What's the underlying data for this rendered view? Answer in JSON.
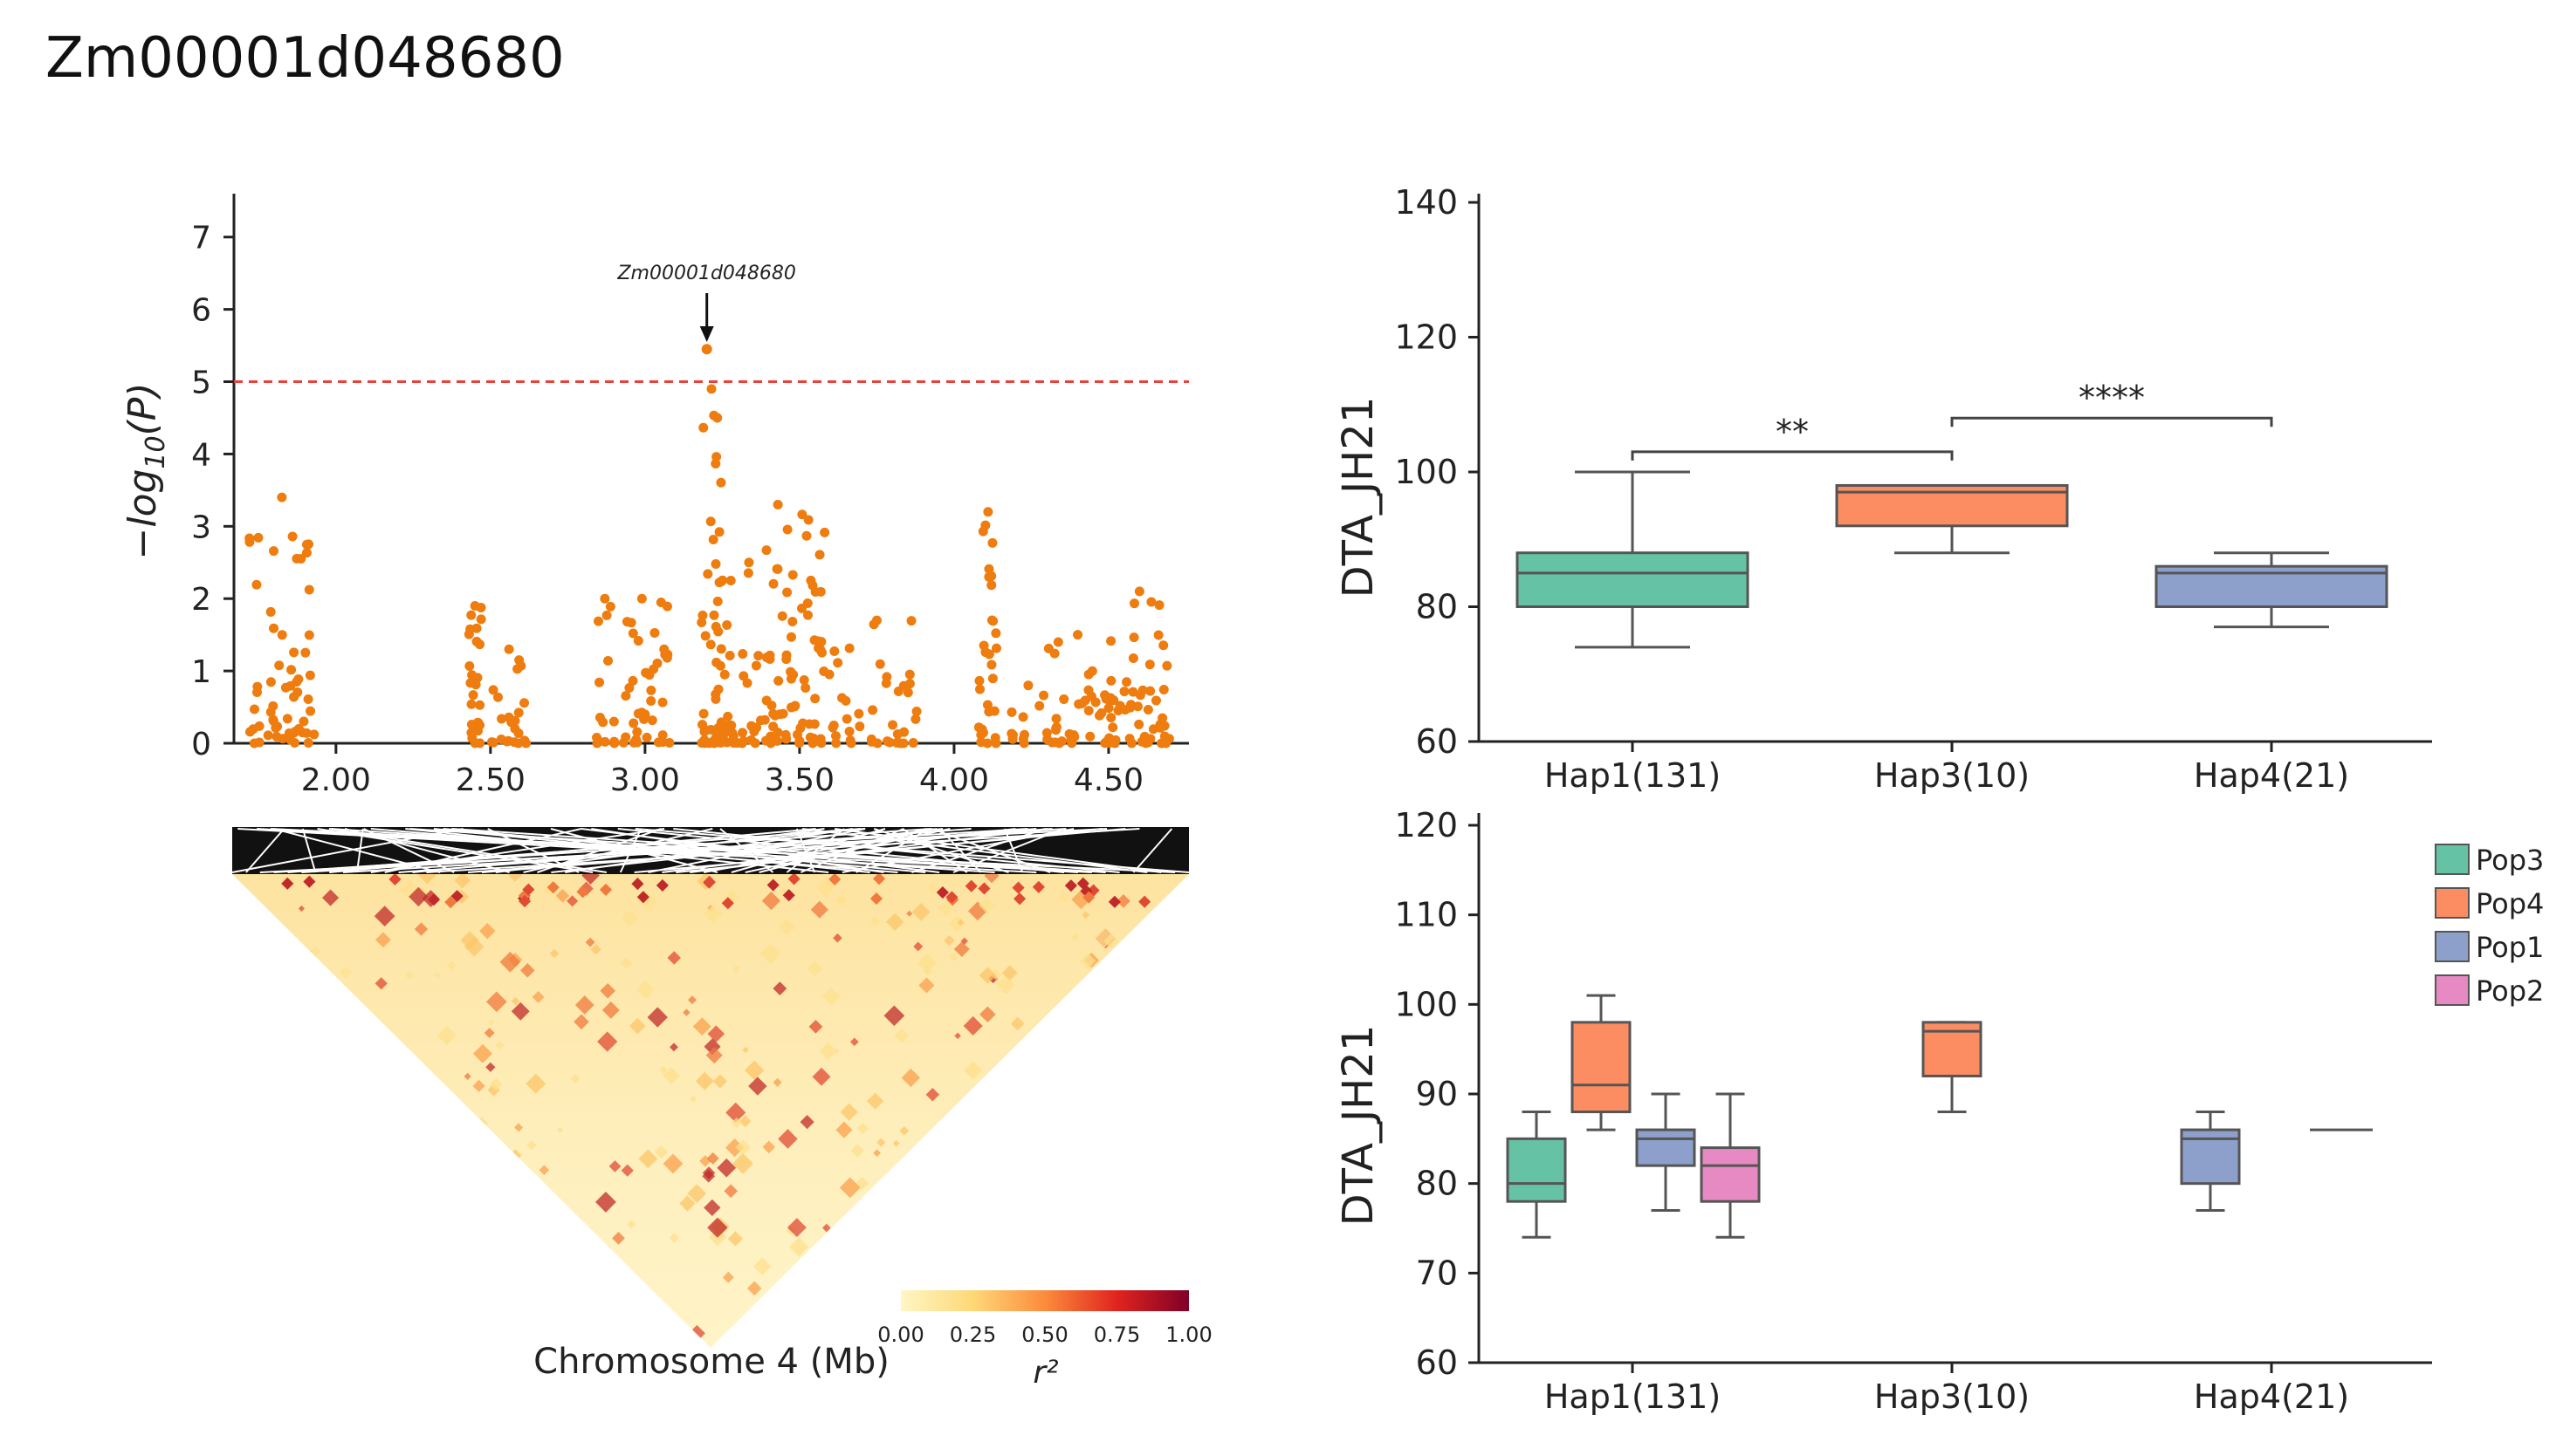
{
  "figure": {
    "title": "Zm00001d048680"
  },
  "chart_data": [
    {
      "id": "manhattan",
      "type": "scatter",
      "title": "",
      "ylabel": "−log10(P)",
      "xlabel": "Chromosome 4 (Mb)",
      "xlim": [
        1.67,
        4.76
      ],
      "ylim": [
        0,
        7.6
      ],
      "xticks": [
        "2.00",
        "2.50",
        "3.00",
        "3.50",
        "4.00",
        "4.50"
      ],
      "xtick_values": [
        2.0,
        2.5,
        3.0,
        3.5,
        4.0,
        4.5
      ],
      "yticks": [
        0,
        1,
        2,
        3,
        4,
        5,
        6,
        7
      ],
      "threshold": 5,
      "threshold_color": "#e8413a",
      "point_color": "#ee7c0e",
      "annotation": {
        "label": "Zm00001d048680",
        "x": 3.2,
        "y": 5.45
      },
      "clusters": [
        {
          "x_min": 1.72,
          "x_max": 1.93,
          "y_max": 3.4,
          "n": 60
        },
        {
          "x_min": 2.43,
          "x_max": 2.47,
          "y_max": 1.9,
          "n": 25
        },
        {
          "x_min": 2.5,
          "x_max": 2.62,
          "y_max": 1.3,
          "n": 22
        },
        {
          "x_min": 2.84,
          "x_max": 2.9,
          "y_max": 2.0,
          "n": 12
        },
        {
          "x_min": 2.9,
          "x_max": 3.08,
          "y_max": 2.0,
          "n": 40
        },
        {
          "x_min": 3.18,
          "x_max": 3.25,
          "y_max": 4.9,
          "n": 45
        },
        {
          "x_min": 3.24,
          "x_max": 3.62,
          "y_max": 3.3,
          "n": 110
        },
        {
          "x_min": 3.62,
          "x_max": 3.88,
          "y_max": 1.7,
          "n": 35
        },
        {
          "x_min": 4.08,
          "x_max": 4.14,
          "y_max": 3.2,
          "n": 30
        },
        {
          "x_min": 4.18,
          "x_max": 4.3,
          "y_max": 0.8,
          "n": 10
        },
        {
          "x_min": 4.3,
          "x_max": 4.5,
          "y_max": 1.5,
          "n": 35
        },
        {
          "x_min": 4.5,
          "x_max": 4.7,
          "y_max": 2.1,
          "n": 55
        }
      ]
    },
    {
      "id": "ld-heatmap",
      "type": "heatmap",
      "colorbar_label": "r²",
      "colorbar_ticks": [
        "0.00",
        "0.25",
        "0.50",
        "0.75",
        "1.00"
      ],
      "colorbar_colors": [
        "#fff6c4",
        "#fed877",
        "#fc8b3c",
        "#e0241f",
        "#800026"
      ]
    },
    {
      "id": "haplotype-box",
      "type": "box",
      "ylabel": "DTA_JH21",
      "ylim": [
        60,
        140
      ],
      "yticks": [
        60,
        80,
        100,
        120,
        140
      ],
      "categories": [
        "Hap1(131)",
        "Hap3(10)",
        "Hap4(21)"
      ],
      "boxes": [
        {
          "category": "Hap1(131)",
          "whisker_low": 74,
          "q1": 80,
          "median": 85,
          "q3": 88,
          "whisker_high": 100,
          "color": "#66c2a5"
        },
        {
          "category": "Hap3(10)",
          "whisker_low": 88,
          "q1": 92,
          "median": 97,
          "q3": 98,
          "whisker_high": 98,
          "color": "#fc8d62"
        },
        {
          "category": "Hap4(21)",
          "whisker_low": 77,
          "q1": 80,
          "median": 85,
          "q3": 86,
          "whisker_high": 88,
          "color": "#8da0cb"
        }
      ],
      "significance": [
        {
          "from": "Hap1(131)",
          "to": "Hap3(10)",
          "label": "**",
          "y": 103
        },
        {
          "from": "Hap3(10)",
          "to": "Hap4(21)",
          "label": "****",
          "y": 108
        }
      ]
    },
    {
      "id": "population-box",
      "type": "box",
      "ylabel": "DTA_JH21",
      "ylim": [
        60,
        120
      ],
      "yticks": [
        60,
        70,
        80,
        90,
        100,
        110,
        120
      ],
      "categories": [
        "Hap1(131)",
        "Hap3(10)",
        "Hap4(21)"
      ],
      "legend": [
        {
          "name": "Pop3",
          "color": "#66c2a5"
        },
        {
          "name": "Pop4",
          "color": "#fc8d62"
        },
        {
          "name": "Pop1",
          "color": "#8da0cb"
        },
        {
          "name": "Pop2",
          "color": "#e78ac3"
        }
      ],
      "boxes": [
        {
          "category": "Hap1(131)",
          "pop": "Pop3",
          "slot": 0,
          "whisker_low": 74,
          "q1": 78,
          "median": 80,
          "q3": 85,
          "whisker_high": 88
        },
        {
          "category": "Hap1(131)",
          "pop": "Pop4",
          "slot": 1,
          "whisker_low": 86,
          "q1": 88,
          "median": 91,
          "q3": 98,
          "whisker_high": 101
        },
        {
          "category": "Hap1(131)",
          "pop": "Pop1",
          "slot": 2,
          "whisker_low": 77,
          "q1": 82,
          "median": 85,
          "q3": 86,
          "whisker_high": 90
        },
        {
          "category": "Hap1(131)",
          "pop": "Pop2",
          "slot": 3,
          "whisker_low": 74,
          "q1": 78,
          "median": 82,
          "q3": 84,
          "whisker_high": 90
        },
        {
          "category": "Hap3(10)",
          "pop": "Pop4",
          "slot": 0,
          "whisker_low": 88,
          "q1": 92,
          "median": 97,
          "q3": 98,
          "whisker_high": 98
        },
        {
          "category": "Hap4(21)",
          "pop": "Pop1",
          "slot": 0,
          "whisker_low": 77,
          "q1": 80,
          "median": 85,
          "q3": 86,
          "whisker_high": 88
        },
        {
          "category": "Hap4(21)",
          "pop": "Pop4",
          "slot": 1,
          "whisker_low": 86,
          "q1": 86,
          "median": 86,
          "q3": 86,
          "whisker_high": 86
        }
      ]
    }
  ]
}
